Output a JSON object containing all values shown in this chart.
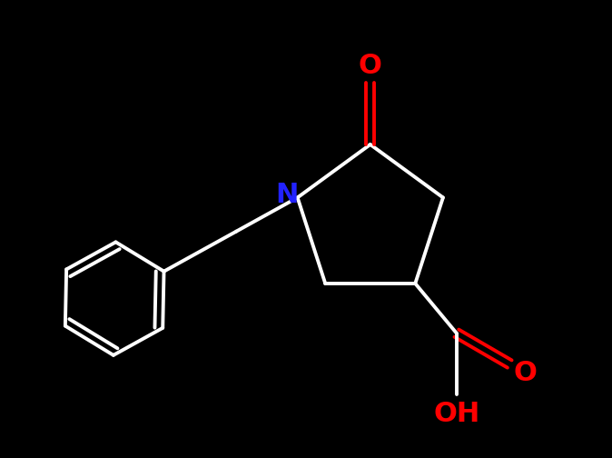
{
  "background_color": "#000000",
  "bond_color": "#ffffff",
  "N_color": "#2222ff",
  "O_color": "#ff0000",
  "line_width": 2.8,
  "figsize": [
    6.74,
    5.04
  ],
  "dpi": 100,
  "xlim": [
    0,
    10
  ],
  "ylim": [
    0,
    7.45
  ],
  "N_fontsize": 22,
  "O_fontsize": 22,
  "OH_fontsize": 22
}
